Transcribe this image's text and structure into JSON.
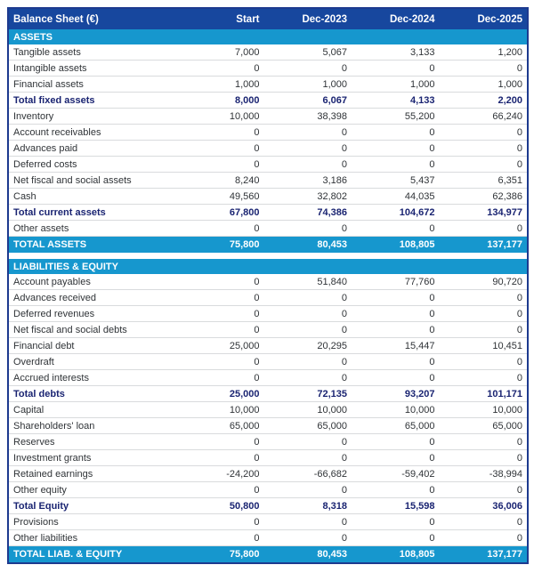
{
  "colors": {
    "header_bg": "#17479e",
    "section_bg": "#1697ce",
    "total_row_bg": "#1697ce",
    "outer_border": "#1d3a8f",
    "subtotal_text": "#1a2472",
    "body_text": "#2f3337",
    "row_separator": "#d9dbdd"
  },
  "table": {
    "title": "Balance Sheet (€)",
    "columns": [
      "Start",
      "Dec-2023",
      "Dec-2024",
      "Dec-2025"
    ],
    "sections": [
      {
        "name": "ASSETS",
        "rows": [
          {
            "label": "Tangible assets",
            "values": [
              "7,000",
              "5,067",
              "3,133",
              "1,200"
            ],
            "style": "normal"
          },
          {
            "label": "Intangible assets",
            "values": [
              "0",
              "0",
              "0",
              "0"
            ],
            "style": "normal"
          },
          {
            "label": "Financial assets",
            "values": [
              "1,000",
              "1,000",
              "1,000",
              "1,000"
            ],
            "style": "normal"
          },
          {
            "label": "Total fixed assets",
            "values": [
              "8,000",
              "6,067",
              "4,133",
              "2,200"
            ],
            "style": "subtotal"
          },
          {
            "label": "Inventory",
            "values": [
              "10,000",
              "38,398",
              "55,200",
              "66,240"
            ],
            "style": "normal"
          },
          {
            "label": "Account receivables",
            "values": [
              "0",
              "0",
              "0",
              "0"
            ],
            "style": "normal"
          },
          {
            "label": "Advances paid",
            "values": [
              "0",
              "0",
              "0",
              "0"
            ],
            "style": "normal"
          },
          {
            "label": "Deferred costs",
            "values": [
              "0",
              "0",
              "0",
              "0"
            ],
            "style": "normal"
          },
          {
            "label": "Net fiscal and social assets",
            "values": [
              "8,240",
              "3,186",
              "5,437",
              "6,351"
            ],
            "style": "normal"
          },
          {
            "label": "Cash",
            "values": [
              "49,560",
              "32,802",
              "44,035",
              "62,386"
            ],
            "style": "normal"
          },
          {
            "label": "Total current assets",
            "values": [
              "67,800",
              "74,386",
              "104,672",
              "134,977"
            ],
            "style": "subtotal"
          },
          {
            "label": "Other assets",
            "values": [
              "0",
              "0",
              "0",
              "0"
            ],
            "style": "normal"
          }
        ],
        "total": {
          "label": "TOTAL ASSETS",
          "values": [
            "75,800",
            "80,453",
            "108,805",
            "137,177"
          ]
        }
      },
      {
        "name": "LIABILITIES & EQUITY",
        "rows": [
          {
            "label": "Account payables",
            "values": [
              "0",
              "51,840",
              "77,760",
              "90,720"
            ],
            "style": "normal"
          },
          {
            "label": "Advances received",
            "values": [
              "0",
              "0",
              "0",
              "0"
            ],
            "style": "normal"
          },
          {
            "label": "Deferred revenues",
            "values": [
              "0",
              "0",
              "0",
              "0"
            ],
            "style": "normal"
          },
          {
            "label": "Net fiscal and social debts",
            "values": [
              "0",
              "0",
              "0",
              "0"
            ],
            "style": "normal"
          },
          {
            "label": "Financial debt",
            "values": [
              "25,000",
              "20,295",
              "15,447",
              "10,451"
            ],
            "style": "normal"
          },
          {
            "label": "Overdraft",
            "values": [
              "0",
              "0",
              "0",
              "0"
            ],
            "style": "normal"
          },
          {
            "label": "Accrued interests",
            "values": [
              "0",
              "0",
              "0",
              "0"
            ],
            "style": "normal"
          },
          {
            "label": "Total debts",
            "values": [
              "25,000",
              "72,135",
              "93,207",
              "101,171"
            ],
            "style": "subtotal"
          },
          {
            "label": "Capital",
            "values": [
              "10,000",
              "10,000",
              "10,000",
              "10,000"
            ],
            "style": "normal"
          },
          {
            "label": "Shareholders' loan",
            "values": [
              "65,000",
              "65,000",
              "65,000",
              "65,000"
            ],
            "style": "normal"
          },
          {
            "label": "Reserves",
            "values": [
              "0",
              "0",
              "0",
              "0"
            ],
            "style": "normal"
          },
          {
            "label": "Investment grants",
            "values": [
              "0",
              "0",
              "0",
              "0"
            ],
            "style": "normal"
          },
          {
            "label": "Retained earnings",
            "values": [
              "-24,200",
              "-66,682",
              "-59,402",
              "-38,994"
            ],
            "style": "normal"
          },
          {
            "label": "Other equity",
            "values": [
              "0",
              "0",
              "0",
              "0"
            ],
            "style": "normal"
          },
          {
            "label": "Total Equity",
            "values": [
              "50,800",
              "8,318",
              "15,598",
              "36,006"
            ],
            "style": "subtotal"
          },
          {
            "label": "Provisions",
            "values": [
              "0",
              "0",
              "0",
              "0"
            ],
            "style": "normal"
          },
          {
            "label": "Other liabilities",
            "values": [
              "0",
              "0",
              "0",
              "0"
            ],
            "style": "normal"
          }
        ],
        "total": {
          "label": "TOTAL LIAB. & EQUITY",
          "values": [
            "75,800",
            "80,453",
            "108,805",
            "137,177"
          ]
        }
      }
    ]
  }
}
